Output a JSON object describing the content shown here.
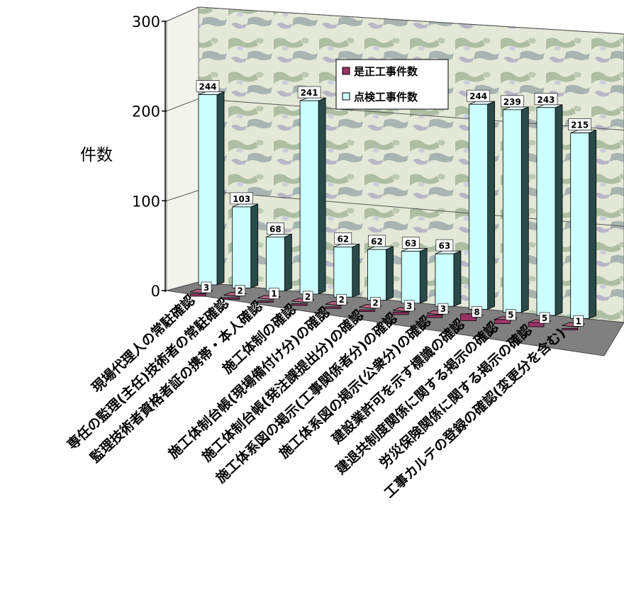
{
  "chart_data": {
    "type": "bar",
    "ylabel": "件数",
    "ylim": [
      0,
      300
    ],
    "yticks": [
      "0",
      "100",
      "200",
      "300"
    ],
    "grid": true,
    "legend_position": "top-right-inside",
    "categories": [
      "現場代理人の常駐確認",
      "専任の監理(主任)技術者の常駐確認",
      "監理技術者資格者証の携帯・本人確認",
      "施工体制の確認",
      "施工体制台帳(現場備付け分)の確認",
      "施工体制台帳(発注課提出分)の確認",
      "施工体系図の掲示(工事関係者分)の確認",
      "施工体系図の掲示(公衆分)の確認",
      "建設業許可を示す標識の確認",
      "建退共制度関係に関する掲示の確認",
      "労災保険関係に関する掲示の確認",
      "工事カルテの登録の確認(変更分を含む)"
    ],
    "series": [
      {
        "name": "是正工事件数",
        "color": "#993366",
        "values": [
          3,
          2,
          1,
          2,
          2,
          2,
          3,
          3,
          8,
          5,
          5,
          1
        ]
      },
      {
        "name": "点検工事件数",
        "color": "#ccffff",
        "values": [
          244,
          103,
          68,
          241,
          62,
          62,
          63,
          63,
          244,
          239,
          243,
          215
        ]
      }
    ]
  }
}
